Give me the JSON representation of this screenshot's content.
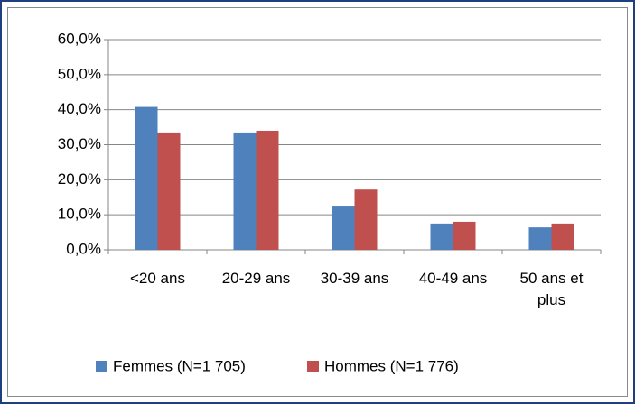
{
  "chart_data": {
    "type": "bar",
    "categories": [
      "<20 ans",
      "20-29 ans",
      "30-39 ans",
      "40-49 ans",
      "50 ans et plus"
    ],
    "series": [
      {
        "name": "Femmes (N=1 705)",
        "color": "#4f81bd",
        "values": [
          40.8,
          33.5,
          12.6,
          7.5,
          6.4
        ]
      },
      {
        "name": "Hommes (N=1 776)",
        "color": "#c0504d",
        "values": [
          33.5,
          34.0,
          17.2,
          8.0,
          7.5
        ]
      }
    ],
    "ylim": [
      0,
      60
    ],
    "yticks": [
      {
        "value": 0,
        "label": "0,0%"
      },
      {
        "value": 10,
        "label": "10,0%"
      },
      {
        "value": 20,
        "label": "20,0%"
      },
      {
        "value": 30,
        "label": "30,0%"
      },
      {
        "value": 40,
        "label": "40,0%"
      },
      {
        "value": 50,
        "label": "50,0%"
      },
      {
        "value": 60,
        "label": "60,0%"
      }
    ],
    "grid": true
  }
}
